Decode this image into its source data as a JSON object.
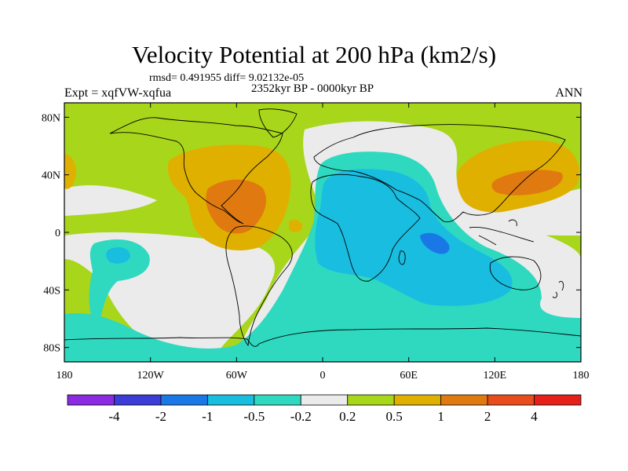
{
  "title": "Velocity Potential at 200 hPa (km2/s)",
  "stats": "rmsd= 0.491955 diff= 9.02132e-05",
  "period": "2352kyr BP - 0000kyr BP",
  "experiment": "Expt = xqfVW-xqfua",
  "season": "ANN",
  "map": {
    "lon_range": [
      -180,
      180
    ],
    "lat_range": [
      -90,
      90
    ],
    "lon_ticks": [
      {
        "value": -180,
        "label": "180"
      },
      {
        "value": -120,
        "label": "120W"
      },
      {
        "value": -60,
        "label": "60W"
      },
      {
        "value": 0,
        "label": "0"
      },
      {
        "value": 60,
        "label": "60E"
      },
      {
        "value": 120,
        "label": "120E"
      },
      {
        "value": 180,
        "label": "180"
      }
    ],
    "lat_ticks": [
      {
        "value": 80,
        "label": "80N"
      },
      {
        "value": 40,
        "label": "40N"
      },
      {
        "value": 0,
        "label": "0"
      },
      {
        "value": -40,
        "label": "40S"
      },
      {
        "value": -80,
        "label": "80S"
      }
    ]
  },
  "colorbar": {
    "colors": [
      "#8a2be2",
      "#3c3cd8",
      "#1a78e6",
      "#19bde0",
      "#2ed9c0",
      "#ebebeb",
      "#a8d61a",
      "#e0b000",
      "#e07a10",
      "#e84c1c",
      "#e62019"
    ],
    "labels": [
      "-4",
      "-2",
      "-1",
      "-0.5",
      "-0.2",
      "0.2",
      "0.5",
      "1",
      "2",
      "4"
    ]
  },
  "fill_colors": {
    "positive_low": "#a8d61a",
    "positive_mid": "#e0b000",
    "positive_high": "#e07a10",
    "neutral": "#ebebeb",
    "negative_low": "#2ed9c0",
    "negative_mid": "#19bde0",
    "negative_high": "#1a78e6"
  }
}
